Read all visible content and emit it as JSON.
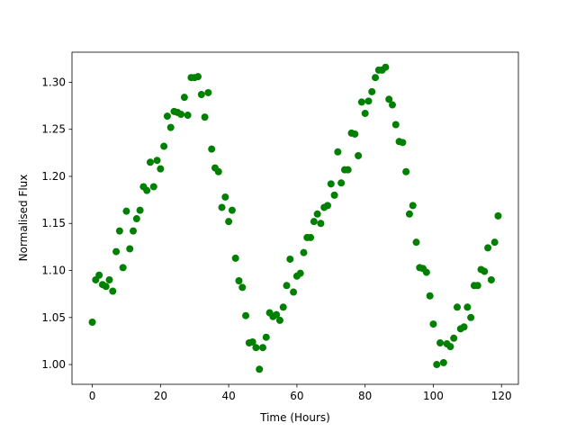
{
  "chart_data": {
    "type": "scatter",
    "xlabel": "Time (Hours)",
    "ylabel": "Normalised Flux",
    "color": "#008000",
    "x": [
      0,
      1,
      2,
      3,
      4,
      5,
      6,
      7,
      8,
      9,
      10,
      11,
      12,
      13,
      14,
      15,
      16,
      17,
      18,
      19,
      20,
      21,
      22,
      23,
      24,
      25,
      26,
      27,
      28,
      29,
      30,
      31,
      32,
      33,
      34,
      35,
      36,
      37,
      38,
      39,
      40,
      41,
      42,
      43,
      44,
      45,
      46,
      47,
      48,
      49,
      50,
      51,
      52,
      53,
      54,
      55,
      56,
      57,
      58,
      59,
      60,
      61,
      62,
      63,
      64,
      65,
      66,
      67,
      68,
      69,
      70,
      71,
      72,
      73,
      74,
      75,
      76,
      77,
      78,
      79,
      80,
      81,
      82,
      83,
      84,
      85,
      86,
      87,
      88,
      89,
      90,
      91,
      92,
      93,
      94,
      95,
      96,
      97,
      98,
      99,
      100,
      101,
      102,
      103,
      104,
      105,
      106,
      107,
      108,
      109,
      110,
      111,
      112,
      113,
      114,
      115,
      116,
      117,
      118,
      119
    ],
    "values": [
      1.045,
      1.09,
      1.095,
      1.085,
      1.083,
      1.09,
      1.078,
      1.12,
      1.142,
      1.103,
      1.163,
      1.123,
      1.142,
      1.155,
      1.164,
      1.189,
      1.185,
      1.215,
      1.189,
      1.217,
      1.208,
      1.232,
      1.264,
      1.252,
      1.269,
      1.268,
      1.266,
      1.284,
      1.265,
      1.305,
      1.305,
      1.306,
      1.287,
      1.263,
      1.289,
      1.229,
      1.209,
      1.205,
      1.167,
      1.178,
      1.152,
      1.164,
      1.113,
      1.089,
      1.082,
      1.052,
      1.023,
      1.024,
      1.018,
      0.995,
      1.018,
      1.029,
      1.055,
      1.051,
      1.053,
      1.047,
      1.061,
      1.084,
      1.112,
      1.077,
      1.094,
      1.097,
      1.119,
      1.135,
      1.135,
      1.152,
      1.16,
      1.15,
      1.167,
      1.169,
      1.192,
      1.18,
      1.226,
      1.193,
      1.207,
      1.207,
      1.246,
      1.245,
      1.222,
      1.279,
      1.267,
      1.28,
      1.29,
      1.305,
      1.313,
      1.313,
      1.316,
      1.282,
      1.276,
      1.255,
      1.237,
      1.236,
      1.205,
      1.16,
      1.169,
      1.13,
      1.103,
      1.102,
      1.098,
      1.073,
      1.043,
      1.0,
      1.023,
      1.002,
      1.022,
      1.019,
      1.028,
      1.061,
      1.038,
      1.04,
      1.061,
      1.05,
      1.084,
      1.084,
      1.101,
      1.099,
      1.124,
      1.09,
      1.13,
      1.158
    ],
    "xlim": [
      -5.95,
      124.95
    ],
    "ylim": [
      0.979,
      1.332
    ],
    "xticks": [
      0,
      20,
      40,
      60,
      80,
      100,
      120
    ],
    "yticks": [
      {
        "value": 1.0,
        "label": "1.00"
      },
      1.05,
      {
        "value": 1.1,
        "label": "1.10"
      },
      1.15,
      {
        "value": 1.2,
        "label": "1.20"
      },
      1.25,
      {
        "value": 1.3,
        "label": "1.30"
      }
    ]
  }
}
